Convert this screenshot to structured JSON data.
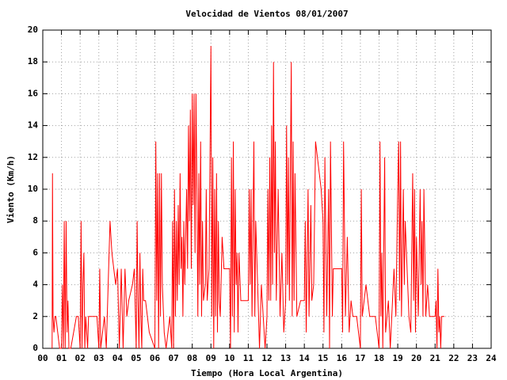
{
  "chart_data": {
    "type": "line",
    "title": "Velocidad de Vientos 08/01/2007",
    "xlabel": "Tiempo (Hora Local Argentina)",
    "ylabel": "Viento (Km/h)",
    "xlim": [
      0,
      24
    ],
    "xticks": [
      {
        "value": 0,
        "label": "00"
      },
      {
        "value": 1,
        "label": "01"
      },
      {
        "value": 2,
        "label": "02"
      },
      {
        "value": 3,
        "label": "03"
      },
      {
        "value": 4,
        "label": "04"
      },
      {
        "value": 5,
        "label": "05"
      },
      {
        "value": 6,
        "label": "06"
      },
      {
        "value": 7,
        "label": "07"
      },
      {
        "value": 8,
        "label": "08"
      },
      {
        "value": 9,
        "label": "09"
      },
      {
        "value": 10,
        "label": "10"
      },
      {
        "value": 11,
        "label": "11"
      },
      {
        "value": 12,
        "label": "12"
      },
      {
        "value": 13,
        "label": "13"
      },
      {
        "value": 14,
        "label": "14"
      },
      {
        "value": 15,
        "label": "15"
      },
      {
        "value": 16,
        "label": "16"
      },
      {
        "value": 17,
        "label": "17"
      },
      {
        "value": 18,
        "label": "18"
      },
      {
        "value": 19,
        "label": "19"
      },
      {
        "value": 20,
        "label": "20"
      },
      {
        "value": 21,
        "label": "21"
      },
      {
        "value": 22,
        "label": "22"
      },
      {
        "value": 23,
        "label": "23"
      },
      {
        "value": 24,
        "label": "24"
      }
    ],
    "ylim": [
      0,
      20
    ],
    "yticks": [
      0,
      2,
      4,
      6,
      8,
      10,
      12,
      14,
      16,
      18,
      20
    ],
    "grid": true,
    "x": [
      0.5,
      0.52,
      0.55,
      0.6,
      0.65,
      0.7,
      0.8,
      0.9,
      1.0,
      1.05,
      1.1,
      1.15,
      1.2,
      1.25,
      1.3,
      1.35,
      1.4,
      1.5,
      1.8,
      1.9,
      2.0,
      2.05,
      2.1,
      2.15,
      2.2,
      2.25,
      2.3,
      2.4,
      2.45,
      2.9,
      3.0,
      3.05,
      3.1,
      3.3,
      3.4,
      3.45,
      3.6,
      3.7,
      3.9,
      4.0,
      4.1,
      4.2,
      4.3,
      4.4,
      4.5,
      4.6,
      4.8,
      4.9,
      5.0,
      5.05,
      5.1,
      5.15,
      5.2,
      5.25,
      5.3,
      5.35,
      5.4,
      5.5,
      5.6,
      5.7,
      6.0,
      6.05,
      6.1,
      6.15,
      6.2,
      6.25,
      6.3,
      6.35,
      6.4,
      6.5,
      6.6,
      6.8,
      6.9,
      6.95,
      7.0,
      7.05,
      7.1,
      7.15,
      7.2,
      7.25,
      7.3,
      7.35,
      7.4,
      7.45,
      7.5,
      7.55,
      7.6,
      7.7,
      7.75,
      7.8,
      7.85,
      7.9,
      7.95,
      8.0,
      8.05,
      8.1,
      8.15,
      8.2,
      8.25,
      8.3,
      8.35,
      8.4,
      8.45,
      8.5,
      8.55,
      8.6,
      8.7,
      8.75,
      8.8,
      8.9,
      9.0,
      9.05,
      9.1,
      9.15,
      9.2,
      9.25,
      9.3,
      9.35,
      9.4,
      9.45,
      9.5,
      9.6,
      9.7,
      9.8,
      10.0,
      10.05,
      10.1,
      10.15,
      10.2,
      10.25,
      10.3,
      10.35,
      10.4,
      10.45,
      10.5,
      10.6,
      10.8,
      11.0,
      11.05,
      11.1,
      11.15,
      11.2,
      11.3,
      11.35,
      11.4,
      11.5,
      11.6,
      11.7,
      11.8,
      11.9,
      12.0,
      12.05,
      12.1,
      12.15,
      12.2,
      12.25,
      12.3,
      12.35,
      12.4,
      12.45,
      12.5,
      12.6,
      12.7,
      12.8,
      12.9,
      13.0,
      13.05,
      13.1,
      13.15,
      13.2,
      13.3,
      13.35,
      13.4,
      13.45,
      13.5,
      13.6,
      13.8,
      14.0,
      14.05,
      14.1,
      14.2,
      14.25,
      14.35,
      14.4,
      14.5,
      14.6,
      14.9,
      15.0,
      15.05,
      15.1,
      15.2,
      15.3,
      15.35,
      15.4,
      15.5,
      15.55,
      16.0,
      16.05,
      16.1,
      16.2,
      16.3,
      16.4,
      16.5,
      16.6,
      16.8,
      17.0,
      17.05,
      17.1,
      17.3,
      17.5,
      17.8,
      18.0,
      18.05,
      18.1,
      18.15,
      18.2,
      18.3,
      18.35,
      18.5,
      18.6,
      18.8,
      18.9,
      19.0,
      19.05,
      19.1,
      19.15,
      19.2,
      19.3,
      19.35,
      19.4,
      19.5,
      19.6,
      19.7,
      19.8,
      19.85,
      19.9,
      19.95,
      20.0,
      20.1,
      20.2,
      20.25,
      20.3,
      20.35,
      20.4,
      20.5,
      20.6,
      20.7,
      21.0,
      21.05,
      21.1,
      21.15,
      21.2,
      21.25,
      21.3,
      21.35,
      21.5
    ],
    "series": [
      {
        "color": "#ff0000",
        "values": [
          0,
          11,
          2,
          1,
          2,
          2,
          1,
          0,
          0,
          4,
          0,
          8,
          0,
          8,
          1,
          3,
          0,
          0,
          2,
          2,
          0,
          8,
          0,
          4,
          6,
          0,
          2,
          0,
          2,
          2,
          0,
          5,
          0,
          2,
          0,
          2,
          8,
          6,
          4,
          5,
          0,
          5,
          0,
          5,
          2,
          3,
          4,
          5,
          0,
          8,
          3,
          0,
          6,
          2,
          0,
          5,
          3,
          3,
          2,
          1,
          0,
          13,
          3,
          11,
          0,
          11,
          2,
          11,
          4,
          1,
          0,
          2,
          0,
          8,
          0,
          10,
          2,
          8,
          3,
          9,
          4,
          11,
          5,
          7,
          2,
          8,
          4,
          10,
          5,
          14,
          8,
          15,
          5,
          16,
          9,
          16,
          6,
          16,
          10,
          2,
          11,
          4,
          13,
          2,
          8,
          3,
          4,
          10,
          3,
          5,
          19,
          2,
          12,
          0,
          10,
          2,
          11,
          1,
          8,
          3,
          2,
          7,
          5,
          5,
          5,
          0,
          12,
          2,
          13,
          1,
          10,
          4,
          6,
          1,
          6,
          3,
          3,
          3,
          10,
          4,
          10,
          2,
          13,
          2,
          8,
          4,
          0,
          4,
          2,
          0,
          2,
          10,
          3,
          12,
          3,
          14,
          4,
          18,
          6,
          13,
          3,
          10,
          2,
          6,
          1,
          3,
          14,
          4,
          12,
          3,
          18,
          2,
          13,
          3,
          11,
          2,
          3,
          3,
          8,
          1,
          10,
          2,
          9,
          3,
          4,
          13,
          10,
          8,
          1,
          12,
          2,
          10,
          0,
          13,
          2,
          5,
          5,
          1,
          13,
          2,
          7,
          1,
          3,
          2,
          2,
          0,
          10,
          2,
          4,
          2,
          2,
          0,
          13,
          2,
          6,
          0,
          12,
          1,
          3,
          0,
          5,
          2,
          10,
          13,
          3,
          13,
          2,
          10,
          4,
          8,
          5,
          2,
          1,
          11,
          3,
          10,
          1,
          7,
          2,
          10,
          4,
          8,
          2,
          10,
          2,
          4,
          2,
          2,
          3,
          0,
          5,
          1,
          2,
          0,
          2,
          2
        ]
      }
    ]
  }
}
